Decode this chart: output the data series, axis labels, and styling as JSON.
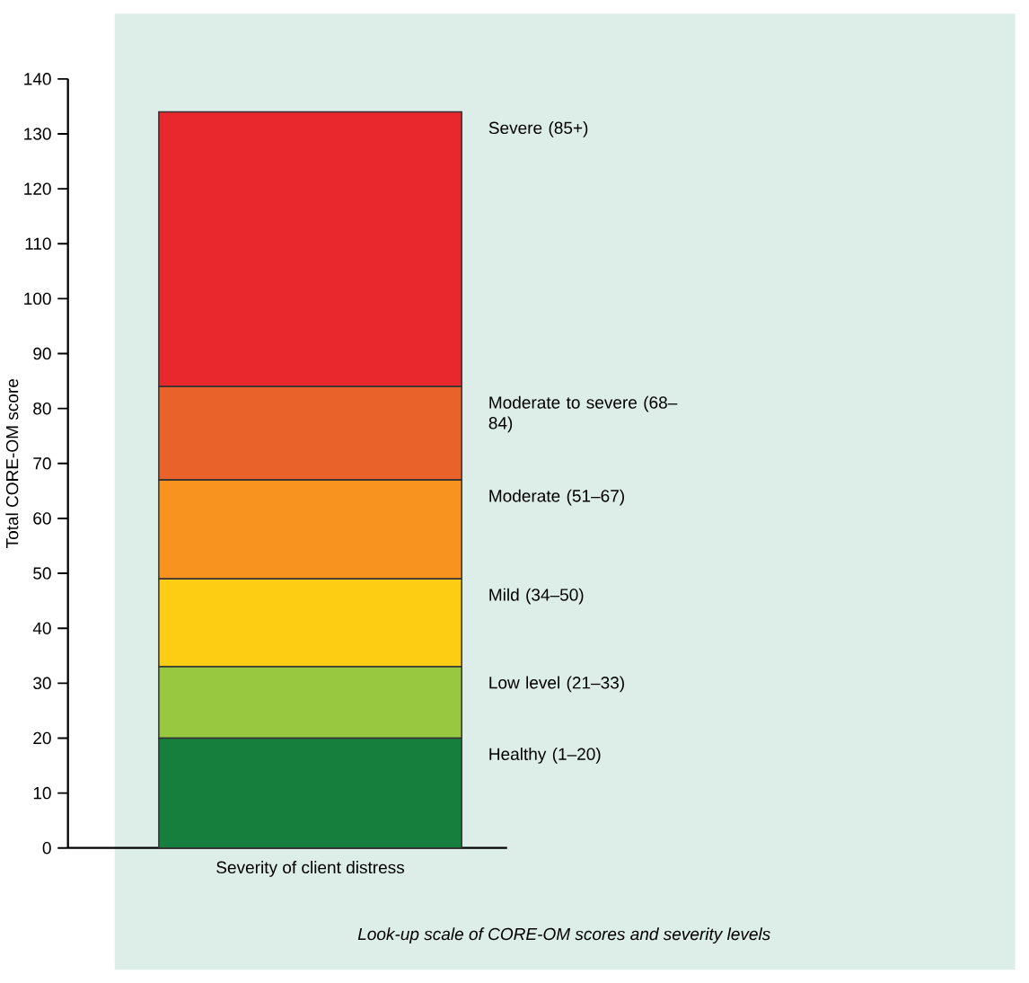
{
  "chart_data": {
    "type": "bar",
    "stacked": true,
    "ylabel": "Total CORE-OM score",
    "categories": [
      "Severity of client distress"
    ],
    "series": [
      {
        "name": "Healthy (1–20)",
        "color": "#167f3d",
        "values": [
          20
        ]
      },
      {
        "name": "Low level (21–33)",
        "color": "#97c83f",
        "values": [
          13
        ]
      },
      {
        "name": "Mild (34–50)",
        "color": "#fccd12",
        "values": [
          16
        ]
      },
      {
        "name": "Moderate (51–67)",
        "color": "#f7931e",
        "values": [
          18
        ]
      },
      {
        "name": "Moderate to severe (68–84)",
        "color": "#e8622a",
        "values": [
          17
        ]
      },
      {
        "name": "Severe (85+)",
        "color": "#e8282d",
        "values": [
          50
        ]
      }
    ],
    "ylim": [
      0,
      140
    ],
    "yticks": [
      0,
      10,
      20,
      30,
      40,
      50,
      60,
      70,
      80,
      90,
      100,
      110,
      120,
      130,
      140
    ],
    "annotations": [
      "Look-up scale of CORE-OM scores and severity levels"
    ]
  }
}
